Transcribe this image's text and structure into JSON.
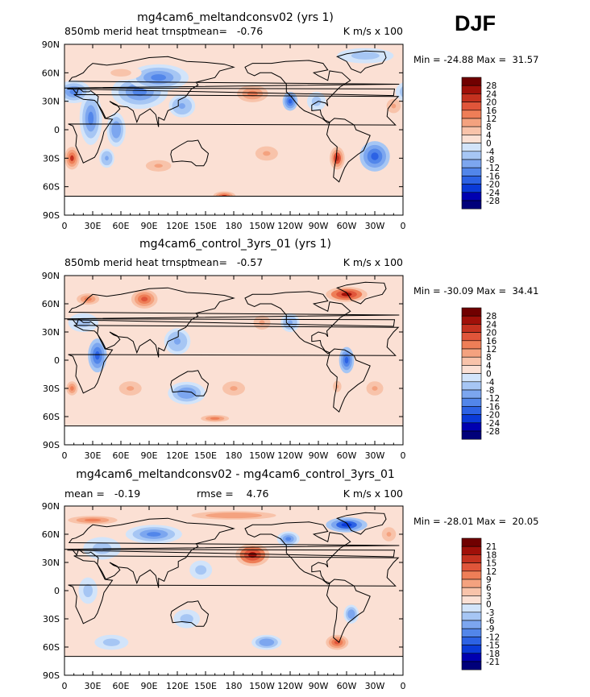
{
  "season": "DJF",
  "chart_data": [
    {
      "type": "heatmap",
      "title": "mg4cam6_meltandconsv02 (yrs 1)",
      "left_label": "850mb merid heat trnspt",
      "stat1": "mean=   -0.76",
      "stat2": "",
      "units": "K m/s x 100",
      "minmax": "Min = -24.88 Max =  31.57",
      "xticks": [
        "0",
        "30E",
        "60E",
        "90E",
        "120E",
        "150E",
        "180",
        "150W",
        "120W",
        "90W",
        "60W",
        "30W",
        "0"
      ],
      "yticks": [
        "90N",
        "60N",
        "30N",
        "0",
        "30S",
        "60S",
        "90S"
      ],
      "xlim": [
        0,
        360
      ],
      "ylim": [
        -90,
        90
      ],
      "levels": [
        -28,
        -24,
        -20,
        -16,
        -12,
        -8,
        -4,
        0,
        4,
        8,
        12,
        16,
        20,
        24,
        28
      ],
      "colorbar_labels": [
        "28",
        "24",
        "20",
        "16",
        "12",
        "8",
        "4",
        "0",
        "-4",
        "-8",
        "-12",
        "-16",
        "-20",
        "-24",
        "-28"
      ],
      "features": [
        {
          "lon": 10,
          "lat": 40,
          "value": -14,
          "w": 18,
          "h": 12
        },
        {
          "lon": 28,
          "lat": 12,
          "value": -14,
          "w": 12,
          "h": 28
        },
        {
          "lon": 55,
          "lat": 0,
          "value": -12,
          "w": 10,
          "h": 18
        },
        {
          "lon": 80,
          "lat": 40,
          "value": -14,
          "w": 30,
          "h": 18
        },
        {
          "lon": 100,
          "lat": 55,
          "value": -16,
          "w": 32,
          "h": 14
        },
        {
          "lon": 125,
          "lat": 25,
          "value": -10,
          "w": 14,
          "h": 12
        },
        {
          "lon": 60,
          "lat": 60,
          "value": 6,
          "w": 22,
          "h": 8
        },
        {
          "lon": 8,
          "lat": -30,
          "value": 20,
          "w": 8,
          "h": 12
        },
        {
          "lon": 45,
          "lat": -30,
          "value": -10,
          "w": 8,
          "h": 10
        },
        {
          "lon": 100,
          "lat": -38,
          "value": 8,
          "w": 18,
          "h": 8
        },
        {
          "lon": 200,
          "lat": 38,
          "value": 14,
          "w": 22,
          "h": 12
        },
        {
          "lon": 240,
          "lat": 30,
          "value": -18,
          "w": 8,
          "h": 10
        },
        {
          "lon": 268,
          "lat": 30,
          "value": -8,
          "w": 10,
          "h": 10
        },
        {
          "lon": 215,
          "lat": -25,
          "value": 8,
          "w": 16,
          "h": 10
        },
        {
          "lon": 290,
          "lat": -30,
          "value": 22,
          "w": 8,
          "h": 12
        },
        {
          "lon": 330,
          "lat": -28,
          "value": -18,
          "w": 16,
          "h": 16
        },
        {
          "lon": 350,
          "lat": 25,
          "value": 8,
          "w": 10,
          "h": 10
        },
        {
          "lon": 170,
          "lat": -70,
          "value": 20,
          "w": 12,
          "h": 5
        },
        {
          "lon": 320,
          "lat": 78,
          "value": -8,
          "w": 30,
          "h": 8
        }
      ]
    },
    {
      "type": "heatmap",
      "title": "mg4cam6_control_3yrs_01 (yrs 1)",
      "left_label": "850mb merid heat trnspt",
      "stat1": "mean=   -0.57",
      "stat2": "",
      "units": "K m/s x 100",
      "minmax": "Min = -30.09 Max =  34.41",
      "xticks": [
        "0",
        "30E",
        "60E",
        "90E",
        "120E",
        "150E",
        "180",
        "150W",
        "120W",
        "90W",
        "60W",
        "30W",
        "0"
      ],
      "yticks": [
        "90N",
        "60N",
        "30N",
        "0",
        "30S",
        "60S",
        "90S"
      ],
      "xlim": [
        0,
        360
      ],
      "ylim": [
        -90,
        90
      ],
      "levels": [
        -28,
        -24,
        -20,
        -16,
        -12,
        -8,
        -4,
        0,
        4,
        8,
        12,
        16,
        20,
        24,
        28
      ],
      "colorbar_labels": [
        "28",
        "24",
        "20",
        "16",
        "12",
        "8",
        "4",
        "0",
        "-4",
        "-8",
        "-12",
        "-16",
        "-20",
        "-24",
        "-28"
      ],
      "features": [
        {
          "lon": 25,
          "lat": 65,
          "value": 14,
          "w": 16,
          "h": 8
        },
        {
          "lon": 85,
          "lat": 65,
          "value": 16,
          "w": 14,
          "h": 10
        },
        {
          "lon": 20,
          "lat": 40,
          "value": -8,
          "w": 16,
          "h": 10
        },
        {
          "lon": 35,
          "lat": 5,
          "value": -18,
          "w": 10,
          "h": 18
        },
        {
          "lon": 8,
          "lat": -30,
          "value": 14,
          "w": 8,
          "h": 10
        },
        {
          "lon": 70,
          "lat": -30,
          "value": 10,
          "w": 16,
          "h": 10
        },
        {
          "lon": 120,
          "lat": 20,
          "value": -10,
          "w": 14,
          "h": 14
        },
        {
          "lon": 130,
          "lat": -35,
          "value": -12,
          "w": 20,
          "h": 12
        },
        {
          "lon": 180,
          "lat": -30,
          "value": 8,
          "w": 16,
          "h": 10
        },
        {
          "lon": 210,
          "lat": 40,
          "value": 8,
          "w": 12,
          "h": 10
        },
        {
          "lon": 240,
          "lat": 40,
          "value": -10,
          "w": 10,
          "h": 10
        },
        {
          "lon": 300,
          "lat": 0,
          "value": -18,
          "w": 8,
          "h": 14
        },
        {
          "lon": 300,
          "lat": 70,
          "value": 26,
          "w": 22,
          "h": 8
        },
        {
          "lon": 330,
          "lat": -30,
          "value": 8,
          "w": 12,
          "h": 10
        },
        {
          "lon": 290,
          "lat": -28,
          "value": 10,
          "w": 6,
          "h": 8
        },
        {
          "lon": 160,
          "lat": -62,
          "value": 12,
          "w": 20,
          "h": 5
        }
      ]
    },
    {
      "type": "heatmap",
      "title": "mg4cam6_meltandconsv02 - mg4cam6_control_3yrs_01",
      "left_label": "",
      "stat1": "mean =   -0.19",
      "stat2": "rmse =    4.76",
      "units": "K m/s x 100",
      "minmax": "Min = -28.01 Max =  20.05",
      "xticks": [
        "0",
        "30E",
        "60E",
        "90E",
        "120E",
        "150E",
        "180",
        "150W",
        "120W",
        "90W",
        "60W",
        "30W",
        "0"
      ],
      "yticks": [
        "90N",
        "60N",
        "30N",
        "0",
        "30S",
        "60S",
        "90S"
      ],
      "xlim": [
        0,
        360
      ],
      "ylim": [
        -90,
        90
      ],
      "levels": [
        -21,
        -18,
        -15,
        -12,
        -9,
        -6,
        -3,
        0,
        3,
        6,
        9,
        12,
        15,
        18,
        21
      ],
      "colorbar_labels": [
        "21",
        "18",
        "15",
        "12",
        "9",
        "6",
        "3",
        "0",
        "-3",
        "-6",
        "-9",
        "-12",
        "-15",
        "-18",
        "-21"
      ],
      "features": [
        {
          "lon": 30,
          "lat": 75,
          "value": 10,
          "w": 35,
          "h": 6
        },
        {
          "lon": 180,
          "lat": 80,
          "value": 8,
          "w": 60,
          "h": 6
        },
        {
          "lon": 95,
          "lat": 60,
          "value": -12,
          "w": 30,
          "h": 10
        },
        {
          "lon": 40,
          "lat": 45,
          "value": -6,
          "w": 20,
          "h": 12
        },
        {
          "lon": 200,
          "lat": 38,
          "value": 18,
          "w": 18,
          "h": 12
        },
        {
          "lon": 238,
          "lat": 55,
          "value": -10,
          "w": 12,
          "h": 8
        },
        {
          "lon": 300,
          "lat": 70,
          "value": -18,
          "w": 22,
          "h": 8
        },
        {
          "lon": 345,
          "lat": 60,
          "value": 6,
          "w": 10,
          "h": 10
        },
        {
          "lon": 145,
          "lat": 22,
          "value": -6,
          "w": 12,
          "h": 10
        },
        {
          "lon": 215,
          "lat": -55,
          "value": -9,
          "w": 16,
          "h": 8
        },
        {
          "lon": 290,
          "lat": -55,
          "value": 12,
          "w": 12,
          "h": 8
        },
        {
          "lon": 50,
          "lat": -55,
          "value": -6,
          "w": 18,
          "h": 8
        },
        {
          "lon": 305,
          "lat": -25,
          "value": -9,
          "w": 8,
          "h": 10
        },
        {
          "lon": 25,
          "lat": 0,
          "value": -6,
          "w": 10,
          "h": 14
        },
        {
          "lon": 130,
          "lat": -30,
          "value": -6,
          "w": 14,
          "h": 10
        }
      ]
    }
  ]
}
